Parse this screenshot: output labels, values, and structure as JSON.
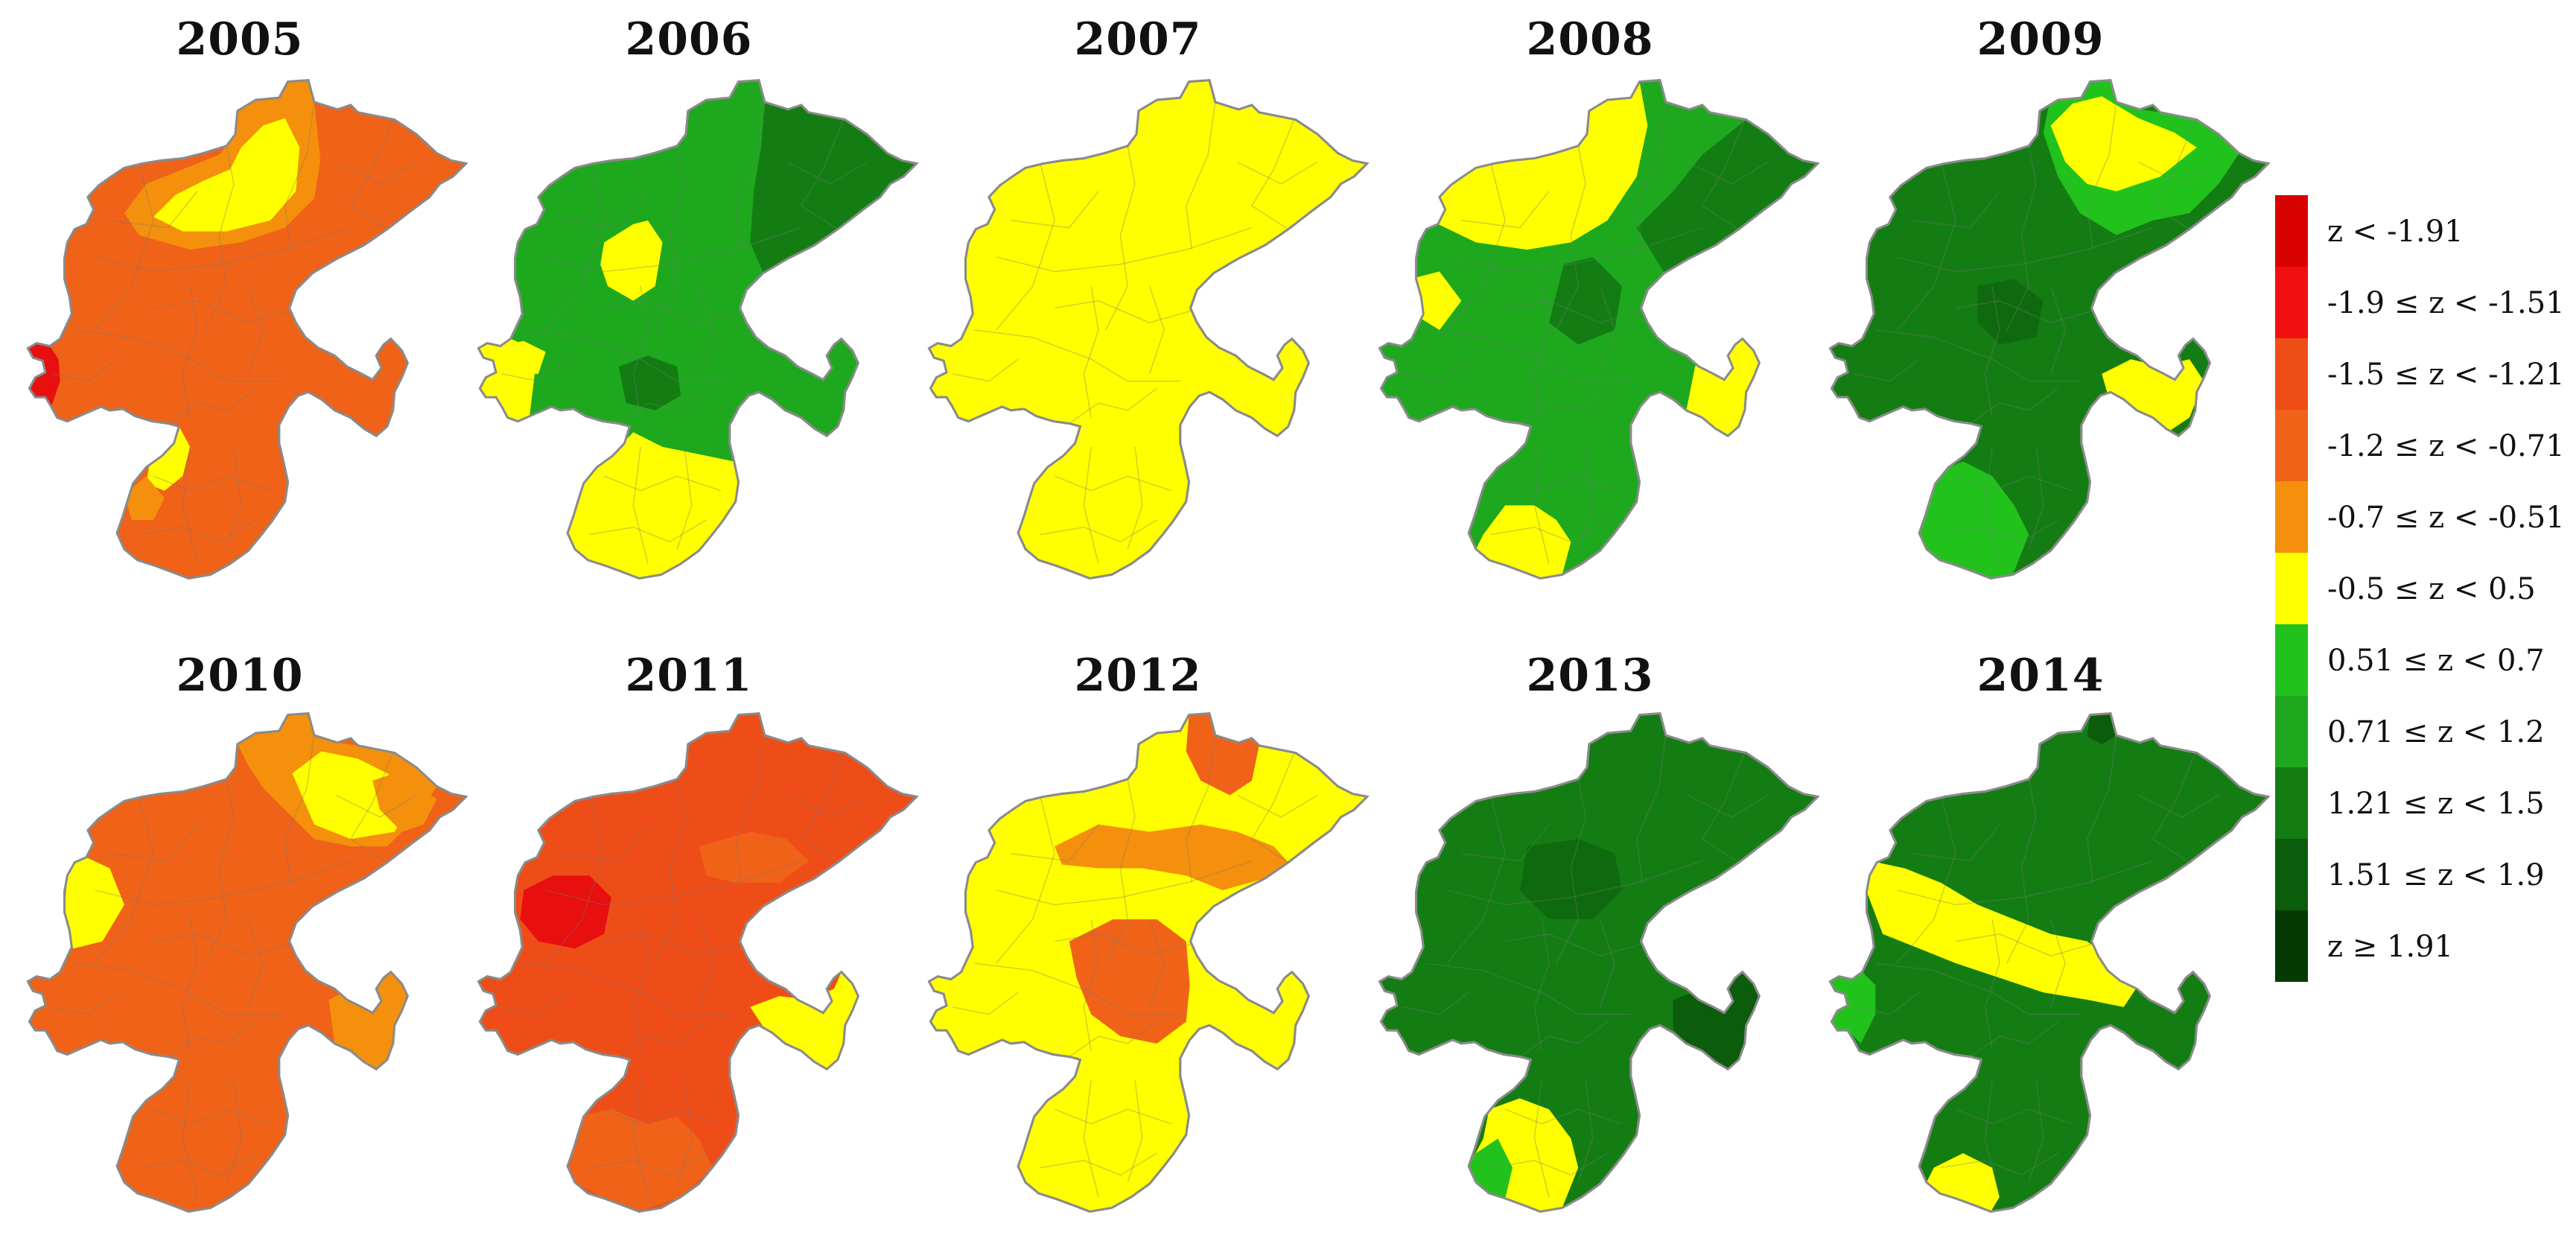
{
  "maps": [
    {
      "year": "2005",
      "base": "#ef6218",
      "patches": [
        {
          "shape": 0,
          "color": "#f4900c"
        },
        {
          "shape": 1,
          "color": "#ffff00"
        },
        {
          "shape": 2,
          "color": "#ef6218"
        },
        {
          "shape": 3,
          "color": "#ffff00"
        },
        {
          "shape": 4,
          "color": "#e80f0f"
        },
        {
          "shape": 5,
          "color": "#f4900c"
        }
      ]
    },
    {
      "year": "2006",
      "base": "#1ea81e",
      "patches": [
        {
          "shape": 6,
          "color": "#137d13"
        },
        {
          "shape": 7,
          "color": "#ffff00"
        },
        {
          "shape": 8,
          "color": "#ffff00"
        },
        {
          "shape": 9,
          "color": "#137d13"
        },
        {
          "shape": 10,
          "color": "#ffff00"
        },
        {
          "shape": 11,
          "color": "#ffff00"
        }
      ]
    },
    {
      "year": "2007",
      "base": "#ffff00",
      "patches": []
    },
    {
      "year": "2008",
      "base": "#1ea81e",
      "patches": [
        {
          "shape": 12,
          "color": "#ffff00"
        },
        {
          "shape": 13,
          "color": "#137d13"
        },
        {
          "shape": 14,
          "color": "#ffff00"
        },
        {
          "shape": 15,
          "color": "#ffff00"
        },
        {
          "shape": 16,
          "color": "#137d13"
        },
        {
          "shape": 17,
          "color": "#ffff00"
        }
      ]
    },
    {
      "year": "2009",
      "base": "#137d13",
      "patches": [
        {
          "shape": 18,
          "color": "#22c21c"
        },
        {
          "shape": 19,
          "color": "#ffff00"
        },
        {
          "shape": 20,
          "color": "#ffff00"
        },
        {
          "shape": 21,
          "color": "#22c21c"
        },
        {
          "shape": 22,
          "color": "#0f6a0f"
        }
      ]
    },
    {
      "year": "2010",
      "base": "#ef6218",
      "patches": [
        {
          "shape": 23,
          "color": "#f4900c"
        },
        {
          "shape": 24,
          "color": "#ffff00"
        },
        {
          "shape": 25,
          "color": "#ffff00"
        },
        {
          "shape": 26,
          "color": "#f4900c"
        },
        {
          "shape": 27,
          "color": "#f4900c"
        }
      ]
    },
    {
      "year": "2011",
      "base": "#ef4d18",
      "patches": [
        {
          "shape": 28,
          "color": "#e80f0f"
        },
        {
          "shape": 29,
          "color": "#ef6218"
        },
        {
          "shape": 30,
          "color": "#ffff00"
        },
        {
          "shape": 31,
          "color": "#ef6218"
        }
      ]
    },
    {
      "year": "2012",
      "base": "#ffff00",
      "patches": [
        {
          "shape": 32,
          "color": "#ef6218"
        },
        {
          "shape": 33,
          "color": "#f4900c"
        },
        {
          "shape": 34,
          "color": "#ef6218"
        }
      ]
    },
    {
      "year": "2013",
      "base": "#137d13",
      "patches": [
        {
          "shape": 35,
          "color": "#0f6a0f"
        },
        {
          "shape": 36,
          "color": "#0b5c0b"
        },
        {
          "shape": 37,
          "color": "#ffff00"
        },
        {
          "shape": 38,
          "color": "#22c21c"
        }
      ]
    },
    {
      "year": "2014",
      "base": "#137d13",
      "patches": [
        {
          "shape": 39,
          "color": "#ffff00"
        },
        {
          "shape": 40,
          "color": "#22c21c"
        },
        {
          "shape": 41,
          "color": "#ffff00"
        },
        {
          "shape": 42,
          "color": "#0b5c0b"
        }
      ]
    }
  ],
  "legend": [
    {
      "label": "z < -1.91",
      "color": "#d90000"
    },
    {
      "label": "-1.9 ≤ z < -1.51",
      "color": "#f01010"
    },
    {
      "label": "-1.5 ≤ z < -1.21",
      "color": "#ef4d18"
    },
    {
      "label": "-1.2 ≤ z < -0.71",
      "color": "#ef6218"
    },
    {
      "label": "-0.7 ≤ z < -0.51",
      "color": "#f4900c"
    },
    {
      "label": "-0.5 ≤ z < 0.5",
      "color": "#ffff00"
    },
    {
      "label": "0.51 ≤ z < 0.7",
      "color": "#22c21c"
    },
    {
      "label": "0.71 ≤ z < 1.2",
      "color": "#1ea81e"
    },
    {
      "label": "1.21 ≤ z < 1.5",
      "color": "#137d13"
    },
    {
      "label": "1.51 ≤ z < 1.9",
      "color": "#0b5c0b"
    },
    {
      "label": "z ≥ 1.91",
      "color": "#053a05"
    }
  ]
}
